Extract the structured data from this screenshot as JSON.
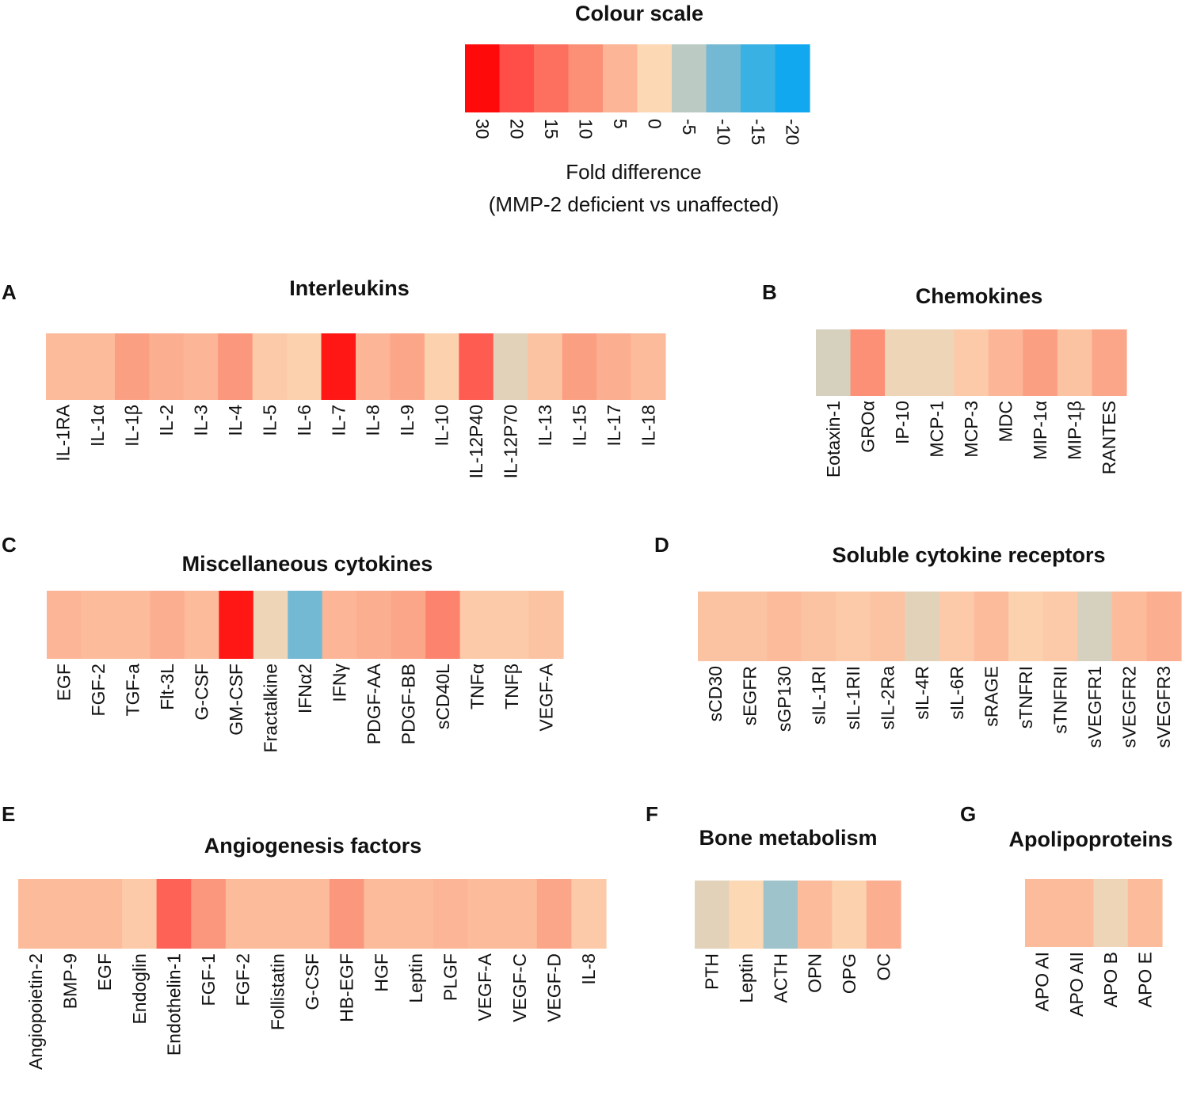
{
  "chart_data": [
    {
      "type": "heatmap",
      "role": "colour-scale-legend",
      "title": "Colour scale",
      "xlabel_line1": "Fold difference",
      "xlabel_line2": "(MMP-2 deficient vs unaffected)",
      "ticks": [
        "30",
        "20",
        "15",
        "10",
        "5",
        "0",
        "-5",
        "-10",
        "-15",
        "-20"
      ],
      "values": [
        30,
        20,
        15,
        10,
        5,
        0,
        -5,
        -10,
        -15,
        -20
      ],
      "colors": [
        "#ff0a0a",
        "#ff4d47",
        "#fd7060",
        "#fb9076",
        "#fcb596",
        "#fcd8b4",
        "#bccac4",
        "#74b9d3",
        "#3ab1e3",
        "#12a8ef"
      ]
    },
    {
      "type": "heatmap",
      "panel": "A",
      "title": "Interleukins",
      "categories": [
        "IL-1RA",
        "IL-1α",
        "IL-1β",
        "IL-2",
        "IL-3",
        "IL-4",
        "IL-5",
        "IL-6",
        "IL-7",
        "IL-8",
        "IL-9",
        "IL-10",
        "IL-12P40",
        "IL-12P70",
        "IL-13",
        "IL-15",
        "IL-17",
        "IL-18"
      ],
      "values": [
        4,
        4,
        8,
        6,
        5,
        9,
        2,
        1,
        28,
        5,
        7,
        1,
        18,
        -2,
        3,
        8,
        6,
        4
      ]
    },
    {
      "type": "heatmap",
      "panel": "B",
      "title": "Chemokines",
      "categories": [
        "Eotaxin-1",
        "GROα",
        "IP-10",
        "MCP-1",
        "MCP-3",
        "MDC",
        "MIP-1α",
        "MIP-1β",
        "RANTES"
      ],
      "values": [
        -3,
        10,
        -1,
        -1,
        2,
        5,
        8,
        3,
        7
      ]
    },
    {
      "type": "heatmap",
      "panel": "C",
      "title": "Miscellaneous cytokines",
      "categories": [
        "EGF",
        "FGF-2",
        "TGF-a",
        "Flt-3L",
        "G-CSF",
        "GM-CSF",
        "Fractalkine",
        "IFNα2",
        "IFNγ",
        "PDGF-AA",
        "PDGF-BB",
        "sCD40L",
        "TNFα",
        "TNFβ",
        "VEGF-A"
      ],
      "values": [
        5,
        4,
        4,
        6,
        4,
        28,
        -1,
        -10,
        5,
        6,
        7,
        12,
        2,
        2,
        3
      ]
    },
    {
      "type": "heatmap",
      "panel": "D",
      "title": "Soluble cytokine receptors",
      "categories": [
        "sCD30",
        "sEGFR",
        "sGP130",
        "sIL-1RI",
        "sIL-1RII",
        "sIL-2Ra",
        "sIL-4R",
        "sIL-6R",
        "sRAGE",
        "sTNFRI",
        "sTNFRII",
        "sVEGFR1",
        "sVEGFR2",
        "sVEGFR3"
      ],
      "values": [
        3,
        3,
        4,
        3,
        2,
        3,
        -2,
        2,
        4,
        1,
        2,
        -3,
        4,
        6
      ]
    },
    {
      "type": "heatmap",
      "panel": "E",
      "title": "Angiogenesis factors",
      "categories": [
        "Angiopoietin-2",
        "BMP-9",
        "EGF",
        "Endoglin",
        "Endothelin-1",
        "FGF-1",
        "FGF-2",
        "Follistatin",
        "G-CSF",
        "HB-EGF",
        "HGF",
        "Leptin",
        "PLGF",
        "VEGF-A",
        "VEGF-C",
        "VEGF-D",
        "IL-8"
      ],
      "values": [
        4,
        4,
        4,
        2,
        17,
        9,
        4,
        4,
        4,
        9,
        4,
        4,
        5,
        4,
        4,
        7,
        2
      ]
    },
    {
      "type": "heatmap",
      "panel": "F",
      "title": "Bone metabolism",
      "categories": [
        "PTH",
        "Leptin",
        "ACTH",
        "OPN",
        "OPG",
        "OC"
      ],
      "values": [
        -2,
        0,
        -7,
        4,
        1,
        6
      ]
    },
    {
      "type": "heatmap",
      "panel": "G",
      "title": "Apolipoproteins",
      "categories": [
        "APO AI",
        "APO AII",
        "APO B",
        "APO E"
      ],
      "values": [
        4,
        4,
        -1,
        4
      ]
    }
  ]
}
